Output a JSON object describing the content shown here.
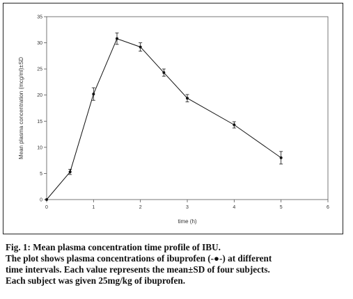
{
  "chart_data": {
    "type": "line",
    "title": "",
    "xlabel": "time (h)",
    "ylabel": "Mean plasma concentration (mcg/ml)±SD",
    "xlim": [
      0,
      6
    ],
    "ylim": [
      0,
      35
    ],
    "xticks": [
      "0",
      "1",
      "2",
      "3",
      "4",
      "5",
      "6"
    ],
    "yticks": [
      "0",
      "5",
      "10",
      "15",
      "20",
      "25",
      "30",
      "35"
    ],
    "series": [
      {
        "x": [
          0,
          0.5,
          1,
          1.5,
          2,
          2.5,
          3,
          4,
          5
        ],
        "y": [
          0,
          5.3,
          20.2,
          30.8,
          29.2,
          24.3,
          19.4,
          14.3,
          8.0
        ],
        "sd": [
          0,
          0.5,
          1.2,
          1.1,
          0.8,
          0.7,
          0.7,
          0.6,
          1.2
        ]
      }
    ],
    "grid": false,
    "legend": "none",
    "color": "#111111"
  },
  "caption": {
    "line1": "Fig. 1: Mean plasma concentration time profile of IBU.",
    "line2": "The plot shows plasma concentrations of ibuprofen (-●-) at different",
    "line3": "time intervals. Each value represents the mean±SD of four subjects.",
    "line4": "Each subject was given 25mg/kg of ibuprofen."
  }
}
